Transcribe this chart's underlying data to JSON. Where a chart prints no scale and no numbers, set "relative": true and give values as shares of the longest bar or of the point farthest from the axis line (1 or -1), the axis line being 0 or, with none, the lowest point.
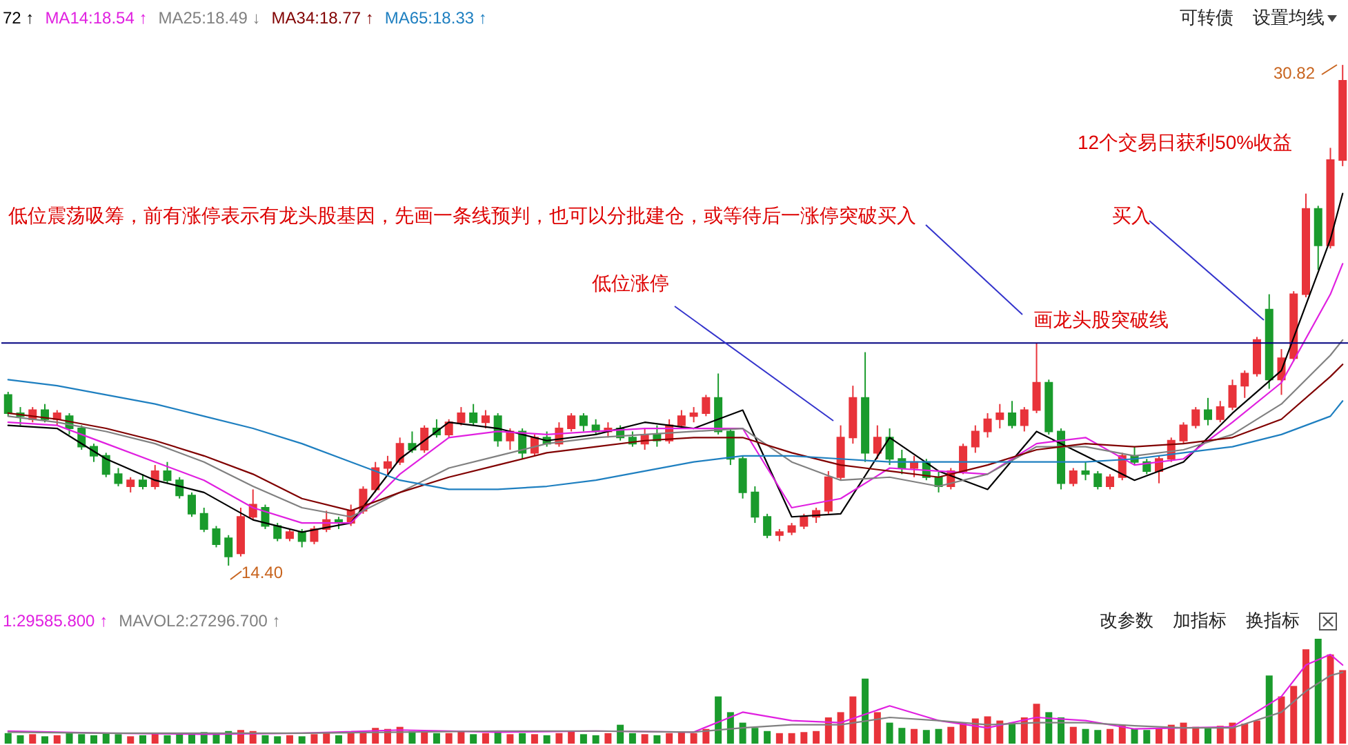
{
  "chart_data": [
    {
      "type": "candlestick",
      "categories": [
        null,
        null,
        null,
        null,
        null,
        null,
        null,
        null,
        null,
        null,
        null,
        null,
        null,
        null,
        null,
        null,
        null,
        null,
        null,
        null,
        null,
        null,
        null,
        null,
        null,
        null,
        null,
        null,
        null,
        null,
        null,
        null,
        null,
        null,
        null,
        null,
        null,
        null,
        null,
        null,
        null,
        null,
        null,
        null,
        null,
        null,
        null,
        null,
        null,
        null,
        null,
        null,
        null,
        null,
        null,
        null,
        null,
        null,
        null,
        null,
        null,
        null,
        null,
        null,
        null,
        null,
        null,
        null,
        null,
        null,
        null,
        null,
        null,
        null,
        null,
        null,
        null,
        null,
        null,
        null,
        null,
        null,
        null,
        null,
        null,
        null,
        null,
        null,
        null,
        null,
        null,
        null,
        null,
        null,
        null,
        null,
        null,
        null,
        null,
        null,
        null,
        null,
        null,
        null,
        null,
        null,
        null,
        null,
        null,
        null
      ],
      "ohlc": [
        [
          20.0,
          20.1,
          19.3,
          19.4
        ],
        [
          19.4,
          19.6,
          19.0,
          19.3
        ],
        [
          19.2,
          19.6,
          19.1,
          19.5
        ],
        [
          19.5,
          19.7,
          19.1,
          19.2
        ],
        [
          19.2,
          19.5,
          19.0,
          19.4
        ],
        [
          19.3,
          19.4,
          18.7,
          18.9
        ],
        [
          18.9,
          19.0,
          18.2,
          18.3
        ],
        [
          18.3,
          18.4,
          17.8,
          18.0
        ],
        [
          18.0,
          18.1,
          17.3,
          17.4
        ],
        [
          17.4,
          17.6,
          17.0,
          17.1
        ],
        [
          17.0,
          17.3,
          16.8,
          17.2
        ],
        [
          17.2,
          17.4,
          16.9,
          17.0
        ],
        [
          17.0,
          17.7,
          16.9,
          17.5
        ],
        [
          17.5,
          17.8,
          17.1,
          17.2
        ],
        [
          17.2,
          17.3,
          16.6,
          16.7
        ],
        [
          16.7,
          16.8,
          16.0,
          16.1
        ],
        [
          16.1,
          16.3,
          15.5,
          15.6
        ],
        [
          15.6,
          15.7,
          15.0,
          15.1
        ],
        [
          15.3,
          15.4,
          14.4,
          14.7
        ],
        [
          14.8,
          16.3,
          14.7,
          16.0
        ],
        [
          16.0,
          16.9,
          15.9,
          16.4
        ],
        [
          16.3,
          16.4,
          15.6,
          15.7
        ],
        [
          15.7,
          15.8,
          15.2,
          15.3
        ],
        [
          15.3,
          15.6,
          15.2,
          15.5
        ],
        [
          15.5,
          15.6,
          15.0,
          15.2
        ],
        [
          15.2,
          15.7,
          15.1,
          15.6
        ],
        [
          15.6,
          16.2,
          15.5,
          15.9
        ],
        [
          15.9,
          16.0,
          15.6,
          15.8
        ],
        [
          15.8,
          16.4,
          15.7,
          16.2
        ],
        [
          16.2,
          17.0,
          16.1,
          16.9
        ],
        [
          16.9,
          17.8,
          16.8,
          17.6
        ],
        [
          17.6,
          18.0,
          17.4,
          17.8
        ],
        [
          17.8,
          18.6,
          17.7,
          18.4
        ],
        [
          18.4,
          18.8,
          18.1,
          18.2
        ],
        [
          18.2,
          19.0,
          18.1,
          18.9
        ],
        [
          18.9,
          19.2,
          18.6,
          18.7
        ],
        [
          18.7,
          19.2,
          18.6,
          19.1
        ],
        [
          19.1,
          19.6,
          19.0,
          19.4
        ],
        [
          19.4,
          19.7,
          19.0,
          19.1
        ],
        [
          19.1,
          19.5,
          18.9,
          19.3
        ],
        [
          19.3,
          19.4,
          18.3,
          18.5
        ],
        [
          18.5,
          18.9,
          18.2,
          18.8
        ],
        [
          18.8,
          18.9,
          17.9,
          18.1
        ],
        [
          18.1,
          18.7,
          18.0,
          18.6
        ],
        [
          18.6,
          18.8,
          18.3,
          18.4
        ],
        [
          18.4,
          19.1,
          18.3,
          18.9
        ],
        [
          18.9,
          19.4,
          18.8,
          19.3
        ],
        [
          19.3,
          19.4,
          18.8,
          19.0
        ],
        [
          19.0,
          19.2,
          18.7,
          18.8
        ],
        [
          18.8,
          19.1,
          18.6,
          18.9
        ],
        [
          18.9,
          19.0,
          18.5,
          18.6
        ],
        [
          18.6,
          18.8,
          18.3,
          18.4
        ],
        [
          18.4,
          18.9,
          18.2,
          18.7
        ],
        [
          18.7,
          19.0,
          18.3,
          18.5
        ],
        [
          18.5,
          19.2,
          18.4,
          19.0
        ],
        [
          19.0,
          19.5,
          18.9,
          19.3
        ],
        [
          19.3,
          19.6,
          19.1,
          19.4
        ],
        [
          19.4,
          20.0,
          19.3,
          19.9
        ],
        [
          19.9,
          20.7,
          18.7,
          18.8
        ],
        [
          18.8,
          18.9,
          17.7,
          17.9
        ],
        [
          17.9,
          18.0,
          16.6,
          16.8
        ],
        [
          16.8,
          17.0,
          15.8,
          16.0
        ],
        [
          16.0,
          16.1,
          15.3,
          15.4
        ],
        [
          15.4,
          15.6,
          15.2,
          15.5
        ],
        [
          15.5,
          15.8,
          15.4,
          15.7
        ],
        [
          15.7,
          16.1,
          15.6,
          16.0
        ],
        [
          16.0,
          16.3,
          15.8,
          16.2
        ],
        [
          16.2,
          17.5,
          16.1,
          17.3
        ],
        [
          17.3,
          19.0,
          17.2,
          18.6
        ],
        [
          18.6,
          20.3,
          18.4,
          19.9
        ],
        [
          19.9,
          21.4,
          17.8,
          18.1
        ],
        [
          18.1,
          19.0,
          17.9,
          18.6
        ],
        [
          18.6,
          18.9,
          17.7,
          17.9
        ],
        [
          17.9,
          18.2,
          17.4,
          17.6
        ],
        [
          17.6,
          18.0,
          17.3,
          17.8
        ],
        [
          17.8,
          17.9,
          17.2,
          17.3
        ],
        [
          17.3,
          17.5,
          16.8,
          17.0
        ],
        [
          17.0,
          17.6,
          16.9,
          17.5
        ],
        [
          17.5,
          18.4,
          17.4,
          18.3
        ],
        [
          18.3,
          19.0,
          18.1,
          18.8
        ],
        [
          18.8,
          19.4,
          18.6,
          19.2
        ],
        [
          19.2,
          19.7,
          18.9,
          19.4
        ],
        [
          19.4,
          19.8,
          18.9,
          19.0
        ],
        [
          19.0,
          19.6,
          18.8,
          19.5
        ],
        [
          19.5,
          21.7,
          19.4,
          20.4
        ],
        [
          20.4,
          20.5,
          18.7,
          18.8
        ],
        [
          18.8,
          18.9,
          16.9,
          17.1
        ],
        [
          17.1,
          17.6,
          17.0,
          17.5
        ],
        [
          17.5,
          17.8,
          17.2,
          17.4
        ],
        [
          17.4,
          17.5,
          16.9,
          17.0
        ],
        [
          17.0,
          17.4,
          16.9,
          17.3
        ],
        [
          17.3,
          18.1,
          17.2,
          18.0
        ],
        [
          18.0,
          18.3,
          17.7,
          17.8
        ],
        [
          17.8,
          17.9,
          17.4,
          17.5
        ],
        [
          17.5,
          18.0,
          17.1,
          17.9
        ],
        [
          17.9,
          18.6,
          17.8,
          18.5
        ],
        [
          18.5,
          19.1,
          18.4,
          19.0
        ],
        [
          19.0,
          19.6,
          18.9,
          19.5
        ],
        [
          19.5,
          19.9,
          19.0,
          19.2
        ],
        [
          19.2,
          19.8,
          19.1,
          19.6
        ],
        [
          19.6,
          20.5,
          19.5,
          20.3
        ],
        [
          20.3,
          20.8,
          19.9,
          20.7
        ],
        [
          20.7,
          21.9,
          20.6,
          21.8
        ],
        [
          22.8,
          23.3,
          20.2,
          20.5
        ],
        [
          20.5,
          21.5,
          20.0,
          21.2
        ],
        [
          21.2,
          23.4,
          21.1,
          23.3
        ],
        [
          23.3,
          26.6,
          23.2,
          26.1
        ],
        [
          26.1,
          26.2,
          24.1,
          24.9
        ],
        [
          24.9,
          28.1,
          24.8,
          27.7
        ],
        [
          27.7,
          30.82,
          27.5,
          30.3
        ]
      ],
      "colors": [
        "#1a9b2c",
        "#1a9b2c",
        "#e8333a",
        "#1a9b2c",
        "#e8333a",
        "#1a9b2c",
        "#1a9b2c",
        "#1a9b2c",
        "#1a9b2c",
        "#1a9b2c",
        "#e8333a",
        "#1a9b2c",
        "#e8333a",
        "#1a9b2c",
        "#1a9b2c",
        "#1a9b2c",
        "#1a9b2c",
        "#1a9b2c",
        "#1a9b2c",
        "#e8333a",
        "#e8333a",
        "#1a9b2c",
        "#1a9b2c",
        "#e8333a",
        "#1a9b2c",
        "#e8333a",
        "#e8333a",
        "#1a9b2c",
        "#e8333a",
        "#e8333a",
        "#e8333a",
        "#e8333a",
        "#e8333a",
        "#1a9b2c",
        "#e8333a",
        "#1a9b2c",
        "#e8333a",
        "#e8333a",
        "#1a9b2c",
        "#e8333a",
        "#1a9b2c",
        "#e8333a",
        "#1a9b2c",
        "#e8333a",
        "#1a9b2c",
        "#e8333a",
        "#e8333a",
        "#1a9b2c",
        "#1a9b2c",
        "#e8333a",
        "#1a9b2c",
        "#1a9b2c",
        "#e8333a",
        "#1a9b2c",
        "#e8333a",
        "#e8333a",
        "#e8333a",
        "#e8333a",
        "#1a9b2c",
        "#1a9b2c",
        "#1a9b2c",
        "#1a9b2c",
        "#1a9b2c",
        "#e8333a",
        "#e8333a",
        "#e8333a",
        "#e8333a",
        "#e8333a",
        "#e8333a",
        "#e8333a",
        "#1a9b2c",
        "#e8333a",
        "#1a9b2c",
        "#1a9b2c",
        "#e8333a",
        "#1a9b2c",
        "#1a9b2c",
        "#e8333a",
        "#e8333a",
        "#e8333a",
        "#e8333a",
        "#e8333a",
        "#1a9b2c",
        "#e8333a",
        "#e8333a",
        "#1a9b2c",
        "#1a9b2c",
        "#e8333a",
        "#1a9b2c",
        "#1a9b2c",
        "#e8333a",
        "#e8333a",
        "#1a9b2c",
        "#1a9b2c",
        "#e8333a",
        "#e8333a",
        "#e8333a",
        "#e8333a",
        "#1a9b2c",
        "#e8333a",
        "#e8333a",
        "#e8333a",
        "#e8333a",
        "#1a9b2c",
        "#e8333a",
        "#e8333a",
        "#e8333a",
        "#1a9b2c",
        "#e8333a",
        "#e8333a"
      ],
      "series": [
        {
          "type": "line",
          "name": "72 ↑",
          "color": "#000000",
          "values": [
            19.0,
            null,
            null,
            null,
            18.9,
            null,
            null,
            null,
            17.9,
            null,
            null,
            null,
            17.2,
            null,
            null,
            null,
            16.8,
            null,
            null,
            null,
            15.9,
            null,
            null,
            null,
            15.5,
            null,
            null,
            null,
            15.8,
            null,
            null,
            null,
            17.9,
            null,
            null,
            null,
            19.1,
            null,
            null,
            null,
            18.9,
            null,
            null,
            null,
            18.5,
            null,
            null,
            null,
            18.7,
            null,
            null,
            null,
            19.1,
            null,
            null,
            null,
            18.9,
            null,
            null,
            null,
            19.5,
            null,
            null,
            null,
            16.0,
            null,
            null,
            null,
            16.1,
            null,
            null,
            null,
            18.6,
            null,
            null,
            null,
            17.5,
            null,
            null,
            null,
            16.9,
            null,
            null,
            null,
            18.8,
            null,
            null,
            null,
            18.0,
            null,
            null,
            null,
            17.2,
            null,
            null,
            null,
            17.8,
            null,
            null,
            null,
            19.4,
            null,
            null,
            null,
            20.8,
            null,
            null,
            null,
            25.1,
            26.6
          ]
        },
        {
          "type": "line",
          "name": "MA14:18.54 ↑",
          "color": "#e020e0",
          "values": [
            19.1,
            null,
            null,
            null,
            19.0,
            null,
            null,
            null,
            18.4,
            null,
            null,
            null,
            17.8,
            null,
            null,
            null,
            17.2,
            null,
            null,
            null,
            16.3,
            null,
            null,
            null,
            15.8,
            null,
            null,
            null,
            15.8,
            null,
            null,
            null,
            17.4,
            null,
            null,
            null,
            18.6,
            null,
            null,
            null,
            18.8,
            null,
            null,
            null,
            18.7,
            null,
            null,
            null,
            18.8,
            null,
            null,
            null,
            18.9,
            null,
            null,
            null,
            18.9,
            null,
            null,
            null,
            18.9,
            null,
            null,
            null,
            16.3,
            null,
            null,
            null,
            16.6,
            null,
            null,
            null,
            17.6,
            null,
            null,
            null,
            17.5,
            null,
            null,
            null,
            17.4,
            null,
            null,
            null,
            18.4,
            null,
            null,
            null,
            18.6,
            null,
            null,
            null,
            17.7,
            null,
            null,
            null,
            17.9,
            null,
            null,
            null,
            19.1,
            null,
            null,
            null,
            20.4,
            null,
            null,
            null,
            23.3,
            24.3
          ]
        },
        {
          "type": "line",
          "name": "MA25:18.49 ↓",
          "color": "#808080",
          "values": [
            19.3,
            null,
            null,
            null,
            19.1,
            null,
            null,
            null,
            18.8,
            null,
            null,
            null,
            18.4,
            null,
            null,
            null,
            17.8,
            null,
            null,
            null,
            17.0,
            null,
            null,
            null,
            16.3,
            null,
            null,
            null,
            16.0,
            null,
            null,
            null,
            16.8,
            null,
            null,
            null,
            17.6,
            null,
            null,
            null,
            18.0,
            null,
            null,
            null,
            18.4,
            null,
            null,
            null,
            18.6,
            null,
            null,
            null,
            18.7,
            null,
            null,
            null,
            18.8,
            null,
            null,
            null,
            18.9,
            null,
            null,
            null,
            17.8,
            null,
            null,
            null,
            17.2,
            null,
            null,
            null,
            17.3,
            null,
            null,
            null,
            17.0,
            null,
            null,
            null,
            17.4,
            null,
            null,
            null,
            18.3,
            null,
            null,
            null,
            18.3,
            null,
            null,
            null,
            18.0,
            null,
            null,
            null,
            18.2,
            null,
            null,
            null,
            18.7,
            null,
            null,
            null,
            19.7,
            null,
            null,
            null,
            21.3,
            21.8
          ]
        },
        {
          "type": "line",
          "name": "MA34:18.77 ↑",
          "color": "#800000",
          "values": [
            19.4,
            null,
            null,
            null,
            19.2,
            null,
            null,
            null,
            18.9,
            null,
            null,
            null,
            18.5,
            null,
            null,
            null,
            18.0,
            null,
            null,
            null,
            17.4,
            null,
            null,
            null,
            16.6,
            null,
            null,
            null,
            16.2,
            null,
            null,
            null,
            16.8,
            null,
            null,
            null,
            17.3,
            null,
            null,
            null,
            17.7,
            null,
            null,
            null,
            18.1,
            null,
            null,
            null,
            18.3,
            null,
            null,
            null,
            18.5,
            null,
            null,
            null,
            18.6,
            null,
            null,
            null,
            18.6,
            null,
            null,
            null,
            18.1,
            null,
            null,
            null,
            17.7,
            null,
            null,
            null,
            17.5,
            null,
            null,
            null,
            17.3,
            null,
            null,
            null,
            17.7,
            null,
            null,
            null,
            18.2,
            null,
            null,
            null,
            18.4,
            null,
            null,
            null,
            18.3,
            null,
            null,
            null,
            18.4,
            null,
            null,
            null,
            18.6,
            null,
            null,
            null,
            19.2,
            null,
            null,
            null,
            20.6,
            21.0
          ]
        },
        {
          "type": "line",
          "name": "MA65:18.33 ↑",
          "color": "#1e7fc0",
          "values": [
            20.5,
            null,
            null,
            null,
            20.3,
            null,
            null,
            null,
            20.0,
            null,
            null,
            null,
            19.7,
            null,
            null,
            null,
            19.3,
            null,
            null,
            null,
            18.9,
            null,
            null,
            null,
            18.4,
            null,
            null,
            null,
            17.8,
            null,
            null,
            null,
            17.2,
            null,
            null,
            null,
            16.9,
            null,
            null,
            null,
            16.9,
            null,
            null,
            null,
            17.0,
            null,
            null,
            null,
            17.2,
            null,
            null,
            null,
            17.5,
            null,
            null,
            null,
            17.8,
            null,
            null,
            null,
            18.0,
            null,
            null,
            null,
            18.0,
            null,
            null,
            null,
            17.9,
            null,
            null,
            null,
            17.8,
            null,
            null,
            null,
            17.8,
            null,
            null,
            null,
            17.8,
            null,
            null,
            null,
            17.8,
            null,
            null,
            null,
            17.8,
            null,
            null,
            null,
            17.9,
            null,
            null,
            null,
            18.1,
            null,
            null,
            null,
            18.3,
            null,
            null,
            null,
            18.7,
            null,
            null,
            null,
            19.3,
            19.8
          ]
        }
      ],
      "ref_lines": [
        {
          "axis": "y",
          "value": 21.7,
          "label": "画龙头股突破线",
          "color": "#000080"
        }
      ],
      "annotations": [
        "低位震荡吸筹，前有涨停表示有龙头股基因，先画一条线预判，也可以分批建仓，或等待后一涨停突破买入",
        "低位涨停",
        "买入",
        "12个交易日获利50%收益",
        "14.40",
        "30.82",
        "可转债",
        "设置均线"
      ]
    },
    {
      "type": "bar",
      "relative": true,
      "categories": [
        null,
        null,
        null,
        null,
        null,
        null,
        null,
        null,
        null,
        null,
        null,
        null,
        null,
        null,
        null,
        null,
        null,
        null,
        null,
        null,
        null,
        null,
        null,
        null,
        null,
        null,
        null,
        null,
        null,
        null,
        null,
        null,
        null,
        null,
        null,
        null,
        null,
        null,
        null,
        null,
        null,
        null,
        null,
        null,
        null,
        null,
        null,
        null,
        null,
        null,
        null,
        null,
        null,
        null,
        null,
        null,
        null,
        null,
        null,
        null,
        null,
        null,
        null,
        null,
        null,
        null,
        null,
        null,
        null,
        null,
        null,
        null,
        null,
        null,
        null,
        null,
        null,
        null,
        null,
        null,
        null,
        null,
        null,
        null,
        null,
        null,
        null,
        null,
        null,
        null,
        null,
        null,
        null,
        null,
        null,
        null,
        null,
        null,
        null,
        null,
        null,
        null,
        null,
        null,
        null,
        null,
        null,
        null,
        null,
        null
      ],
      "values": [
        0.1,
        0.08,
        0.09,
        0.07,
        0.08,
        0.1,
        0.09,
        0.08,
        0.1,
        0.09,
        0.07,
        0.08,
        0.1,
        0.08,
        0.09,
        0.1,
        0.11,
        0.09,
        0.12,
        0.13,
        0.12,
        0.08,
        0.07,
        0.08,
        0.07,
        0.09,
        0.1,
        0.08,
        0.11,
        0.12,
        0.15,
        0.14,
        0.16,
        0.12,
        0.11,
        0.1,
        0.1,
        0.12,
        0.09,
        0.1,
        0.11,
        0.09,
        0.1,
        0.09,
        0.08,
        0.1,
        0.12,
        0.09,
        0.08,
        0.1,
        0.18,
        0.1,
        0.09,
        0.08,
        0.1,
        0.11,
        0.1,
        0.14,
        0.45,
        0.3,
        0.2,
        0.15,
        0.12,
        0.1,
        0.1,
        0.11,
        0.12,
        0.25,
        0.3,
        0.45,
        0.62,
        0.3,
        0.2,
        0.15,
        0.14,
        0.13,
        0.14,
        0.16,
        0.2,
        0.24,
        0.26,
        0.22,
        0.2,
        0.25,
        0.38,
        0.3,
        0.25,
        0.16,
        0.14,
        0.13,
        0.14,
        0.18,
        0.14,
        0.13,
        0.15,
        0.18,
        0.2,
        0.16,
        0.15,
        0.17,
        0.2,
        0.19,
        0.22,
        0.65,
        0.45,
        0.55,
        0.9,
        1.0,
        0.85,
        0.7
      ],
      "colors": [
        "#1a9b2c",
        "#1a9b2c",
        "#e8333a",
        "#1a9b2c",
        "#e8333a",
        "#1a9b2c",
        "#1a9b2c",
        "#1a9b2c",
        "#1a9b2c",
        "#1a9b2c",
        "#e8333a",
        "#1a9b2c",
        "#e8333a",
        "#1a9b2c",
        "#1a9b2c",
        "#1a9b2c",
        "#1a9b2c",
        "#1a9b2c",
        "#1a9b2c",
        "#e8333a",
        "#e8333a",
        "#1a9b2c",
        "#1a9b2c",
        "#e8333a",
        "#1a9b2c",
        "#e8333a",
        "#e8333a",
        "#1a9b2c",
        "#e8333a",
        "#e8333a",
        "#e8333a",
        "#e8333a",
        "#e8333a",
        "#1a9b2c",
        "#e8333a",
        "#1a9b2c",
        "#e8333a",
        "#e8333a",
        "#1a9b2c",
        "#e8333a",
        "#1a9b2c",
        "#e8333a",
        "#1a9b2c",
        "#e8333a",
        "#1a9b2c",
        "#e8333a",
        "#e8333a",
        "#1a9b2c",
        "#1a9b2c",
        "#e8333a",
        "#1a9b2c",
        "#1a9b2c",
        "#e8333a",
        "#1a9b2c",
        "#e8333a",
        "#e8333a",
        "#e8333a",
        "#e8333a",
        "#1a9b2c",
        "#1a9b2c",
        "#1a9b2c",
        "#1a9b2c",
        "#1a9b2c",
        "#e8333a",
        "#e8333a",
        "#e8333a",
        "#e8333a",
        "#e8333a",
        "#e8333a",
        "#e8333a",
        "#1a9b2c",
        "#e8333a",
        "#1a9b2c",
        "#1a9b2c",
        "#e8333a",
        "#1a9b2c",
        "#1a9b2c",
        "#e8333a",
        "#e8333a",
        "#e8333a",
        "#e8333a",
        "#e8333a",
        "#1a9b2c",
        "#e8333a",
        "#e8333a",
        "#1a9b2c",
        "#1a9b2c",
        "#e8333a",
        "#1a9b2c",
        "#1a9b2c",
        "#e8333a",
        "#e8333a",
        "#1a9b2c",
        "#1a9b2c",
        "#e8333a",
        "#e8333a",
        "#e8333a",
        "#e8333a",
        "#1a9b2c",
        "#e8333a",
        "#e8333a",
        "#e8333a",
        "#e8333a",
        "#1a9b2c",
        "#e8333a",
        "#e8333a",
        "#e8333a",
        "#1a9b2c",
        "#e8333a",
        "#e8333a"
      ],
      "series": [
        {
          "type": "line",
          "name": "1:29585.800 ↑",
          "color": "#e020e0",
          "values": [
            0.12,
            null,
            null,
            null,
            null,
            null,
            null,
            null,
            0.1,
            null,
            null,
            null,
            null,
            null,
            null,
            null,
            0.09,
            null,
            null,
            null,
            null,
            null,
            null,
            null,
            0.1,
            null,
            null,
            null,
            null,
            null,
            null,
            null,
            0.13,
            null,
            null,
            null,
            null,
            null,
            null,
            null,
            0.11,
            null,
            null,
            null,
            null,
            null,
            null,
            null,
            0.12,
            null,
            null,
            null,
            null,
            null,
            null,
            null,
            0.11,
            null,
            null,
            null,
            0.3,
            null,
            null,
            null,
            0.22,
            null,
            null,
            null,
            0.2,
            null,
            null,
            null,
            0.36,
            null,
            null,
            null,
            0.22,
            null,
            null,
            null,
            0.15,
            null,
            null,
            null,
            0.25,
            null,
            null,
            null,
            0.22,
            null,
            null,
            null,
            0.14,
            null,
            null,
            null,
            0.15,
            null,
            null,
            null,
            0.16,
            null,
            null,
            null,
            0.45,
            null,
            0.75,
            null,
            0.85,
            0.75
          ]
        },
        {
          "type": "line",
          "name": "MAVOL2:27296.700 ↑",
          "color": "#808080",
          "values": [
            0.11,
            null,
            null,
            null,
            null,
            null,
            null,
            null,
            0.1,
            null,
            null,
            null,
            null,
            null,
            null,
            null,
            0.1,
            null,
            null,
            null,
            null,
            null,
            null,
            null,
            0.1,
            null,
            null,
            null,
            null,
            null,
            null,
            null,
            0.11,
            null,
            null,
            null,
            null,
            null,
            null,
            null,
            0.12,
            null,
            null,
            null,
            null,
            null,
            null,
            null,
            0.12,
            null,
            null,
            null,
            null,
            null,
            null,
            null,
            0.11,
            null,
            null,
            null,
            0.15,
            null,
            null,
            null,
            0.18,
            null,
            null,
            null,
            0.18,
            null,
            null,
            null,
            0.25,
            null,
            null,
            null,
            0.22,
            null,
            null,
            null,
            0.18,
            null,
            null,
            null,
            0.2,
            null,
            null,
            null,
            0.2,
            null,
            null,
            null,
            0.17,
            null,
            null,
            null,
            0.15,
            null,
            null,
            null,
            0.15,
            null,
            null,
            null,
            0.3,
            null,
            0.5,
            null,
            0.65,
            0.68
          ]
        }
      ],
      "annotations": [
        "改参数",
        "加指标",
        "换指标"
      ]
    }
  ]
}
